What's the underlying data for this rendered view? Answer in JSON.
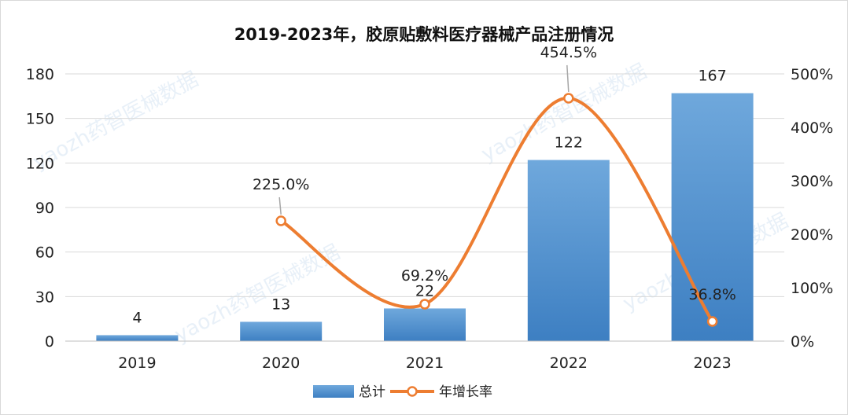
{
  "chart_data": {
    "type": "bar",
    "title": "2019-2023年，胶原贴敷料医疗器械产品注册情况",
    "categories": [
      "2019",
      "2020",
      "2021",
      "2022",
      "2023"
    ],
    "series": [
      {
        "name": "总计",
        "type": "bar",
        "axis": "left",
        "values": [
          4,
          13,
          22,
          122,
          167
        ],
        "labels": [
          "4",
          "13",
          "22",
          "122",
          "167"
        ],
        "color": "#5b9bd5"
      },
      {
        "name": "年增长率",
        "type": "line",
        "axis": "right",
        "values": [
          null,
          225.0,
          69.2,
          454.5,
          36.8
        ],
        "labels": [
          "",
          "225.0%",
          "69.2%",
          "454.5%",
          "36.8%"
        ],
        "color": "#ed7d31"
      }
    ],
    "y_left": {
      "range": [
        0,
        180
      ],
      "ticks": [
        0,
        30,
        60,
        90,
        120,
        150,
        180
      ],
      "tick_labels": [
        "0",
        "30",
        "60",
        "90",
        "120",
        "150",
        "180"
      ]
    },
    "y_right": {
      "range": [
        0,
        500
      ],
      "ticks": [
        0,
        100,
        200,
        300,
        400,
        500
      ],
      "tick_labels": [
        "0%",
        "100%",
        "200%",
        "300%",
        "400%",
        "500%"
      ]
    },
    "grid": true,
    "legend_position": "bottom",
    "watermark": "yaozh药智医械数据"
  }
}
